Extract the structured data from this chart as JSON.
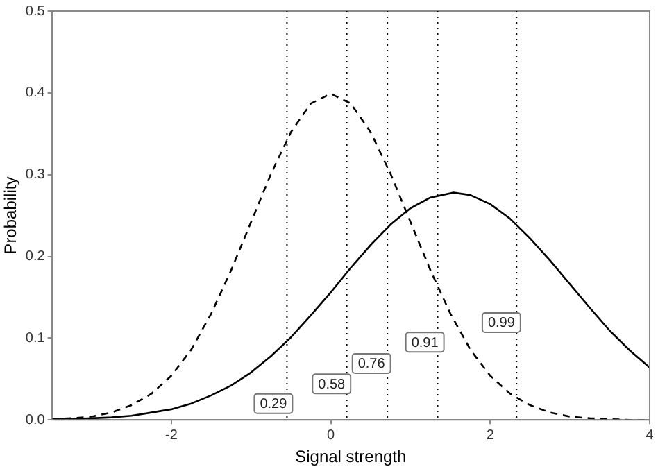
{
  "chart_data": {
    "type": "line",
    "xlabel": "Signal strength",
    "ylabel": "Probability",
    "xlim": [
      -3.5,
      4
    ],
    "xticks": [
      -2,
      0,
      2,
      4
    ],
    "ylim": [
      0,
      0.5
    ],
    "yticks": [
      {
        "value": 0,
        "label": "0.0"
      },
      {
        "value": 0.1,
        "label": "0.1"
      },
      {
        "value": 0.2,
        "label": "0.2"
      },
      {
        "value": 0.3,
        "label": "0.3"
      },
      {
        "value": 0.4,
        "label": "0.4"
      },
      {
        "value": 0.5,
        "label": "0.5"
      }
    ],
    "grid": false,
    "legend": false,
    "marker": "none",
    "series": [
      {
        "color": "#000000",
        "line_style": "dashed",
        "x": [
          -3.5,
          -3.25,
          -3,
          -2.75,
          -2.5,
          -2.25,
          -2,
          -1.75,
          -1.5,
          -1.25,
          -1,
          -0.75,
          -0.5,
          -0.25,
          0,
          0.25,
          0.5,
          0.75,
          1,
          1.25,
          1.5,
          1.75,
          2,
          2.25,
          2.5,
          2.75,
          3,
          3.25,
          3.5,
          3.75,
          4
        ],
        "values": [
          0.001,
          0.002,
          0.004,
          0.009,
          0.018,
          0.032,
          0.054,
          0.086,
          0.13,
          0.183,
          0.242,
          0.301,
          0.352,
          0.387,
          0.399,
          0.387,
          0.352,
          0.301,
          0.242,
          0.183,
          0.13,
          0.086,
          0.054,
          0.032,
          0.018,
          0.009,
          0.004,
          0.002,
          0.001,
          0.0,
          0.0
        ]
      },
      {
        "color": "#000000",
        "line_style": "solid",
        "x": [
          -3.5,
          -3.25,
          -3,
          -2.75,
          -2.5,
          -2.25,
          -2,
          -1.75,
          -1.5,
          -1.25,
          -1,
          -0.75,
          -0.5,
          -0.25,
          0,
          0.25,
          0.5,
          0.75,
          1,
          1.25,
          1.54,
          1.75,
          2,
          2.25,
          2.5,
          2.75,
          3,
          3.25,
          3.5,
          3.75,
          4
        ],
        "values": [
          0.001,
          0.001,
          0.002,
          0.003,
          0.005,
          0.009,
          0.013,
          0.02,
          0.03,
          0.042,
          0.058,
          0.078,
          0.101,
          0.128,
          0.156,
          0.186,
          0.214,
          0.239,
          0.259,
          0.272,
          0.278,
          0.275,
          0.264,
          0.246,
          0.222,
          0.195,
          0.166,
          0.137,
          0.109,
          0.085,
          0.064
        ]
      }
    ],
    "ref_lines": [
      {
        "axis": "x",
        "value": -0.55,
        "line_style": "dotted"
      },
      {
        "axis": "x",
        "value": 0.2,
        "line_style": "dotted"
      },
      {
        "axis": "x",
        "value": 0.71,
        "line_style": "dotted"
      },
      {
        "axis": "x",
        "value": 1.34,
        "line_style": "dotted"
      },
      {
        "axis": "x",
        "value": 2.33,
        "line_style": "dotted"
      }
    ],
    "annotations": [
      {
        "text": "0.29",
        "x": -0.72,
        "y": 0.02
      },
      {
        "text": "0.58",
        "x": 0.01,
        "y": 0.044
      },
      {
        "text": "0.76",
        "x": 0.51,
        "y": 0.069
      },
      {
        "text": "0.91",
        "x": 1.18,
        "y": 0.095
      },
      {
        "text": "0.99",
        "x": 2.14,
        "y": 0.119
      }
    ]
  }
}
